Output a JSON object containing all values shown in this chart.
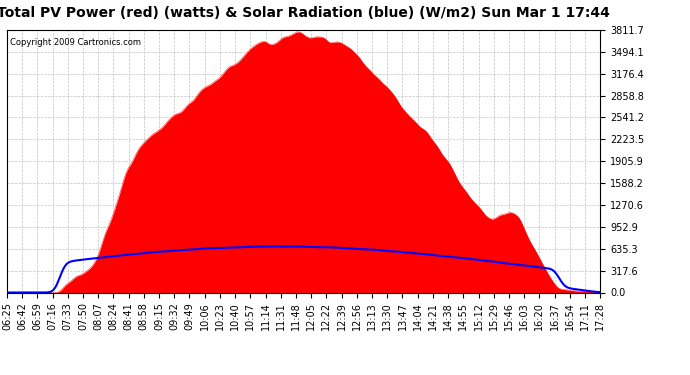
{
  "title": "Total PV Power (red) (watts) & Solar Radiation (blue) (W/m2) Sun Mar 1 17:44",
  "copyright_text": "Copyright 2009 Cartronics.com",
  "y_ticks": [
    0.0,
    317.6,
    635.3,
    952.9,
    1270.6,
    1588.2,
    1905.9,
    2223.5,
    2541.2,
    2858.8,
    3176.4,
    3494.1,
    3811.7
  ],
  "x_labels": [
    "06:25",
    "06:42",
    "06:59",
    "07:16",
    "07:33",
    "07:50",
    "08:07",
    "08:24",
    "08:41",
    "08:58",
    "09:15",
    "09:32",
    "09:49",
    "10:06",
    "10:23",
    "10:40",
    "10:57",
    "11:14",
    "11:31",
    "11:48",
    "12:05",
    "12:22",
    "12:39",
    "12:56",
    "13:13",
    "13:30",
    "13:47",
    "14:04",
    "14:21",
    "14:38",
    "14:55",
    "15:12",
    "15:29",
    "15:46",
    "16:03",
    "16:20",
    "16:37",
    "16:54",
    "17:11",
    "17:28"
  ],
  "ymax": 3811.7,
  "background_color": "#ffffff",
  "plot_bg_color": "#ffffff",
  "grid_color": "#bbbbbb",
  "fill_color": "#ff0000",
  "line_color": "#0000ff",
  "title_fontsize": 10,
  "tick_fontsize": 7,
  "copyright_fontsize": 6
}
